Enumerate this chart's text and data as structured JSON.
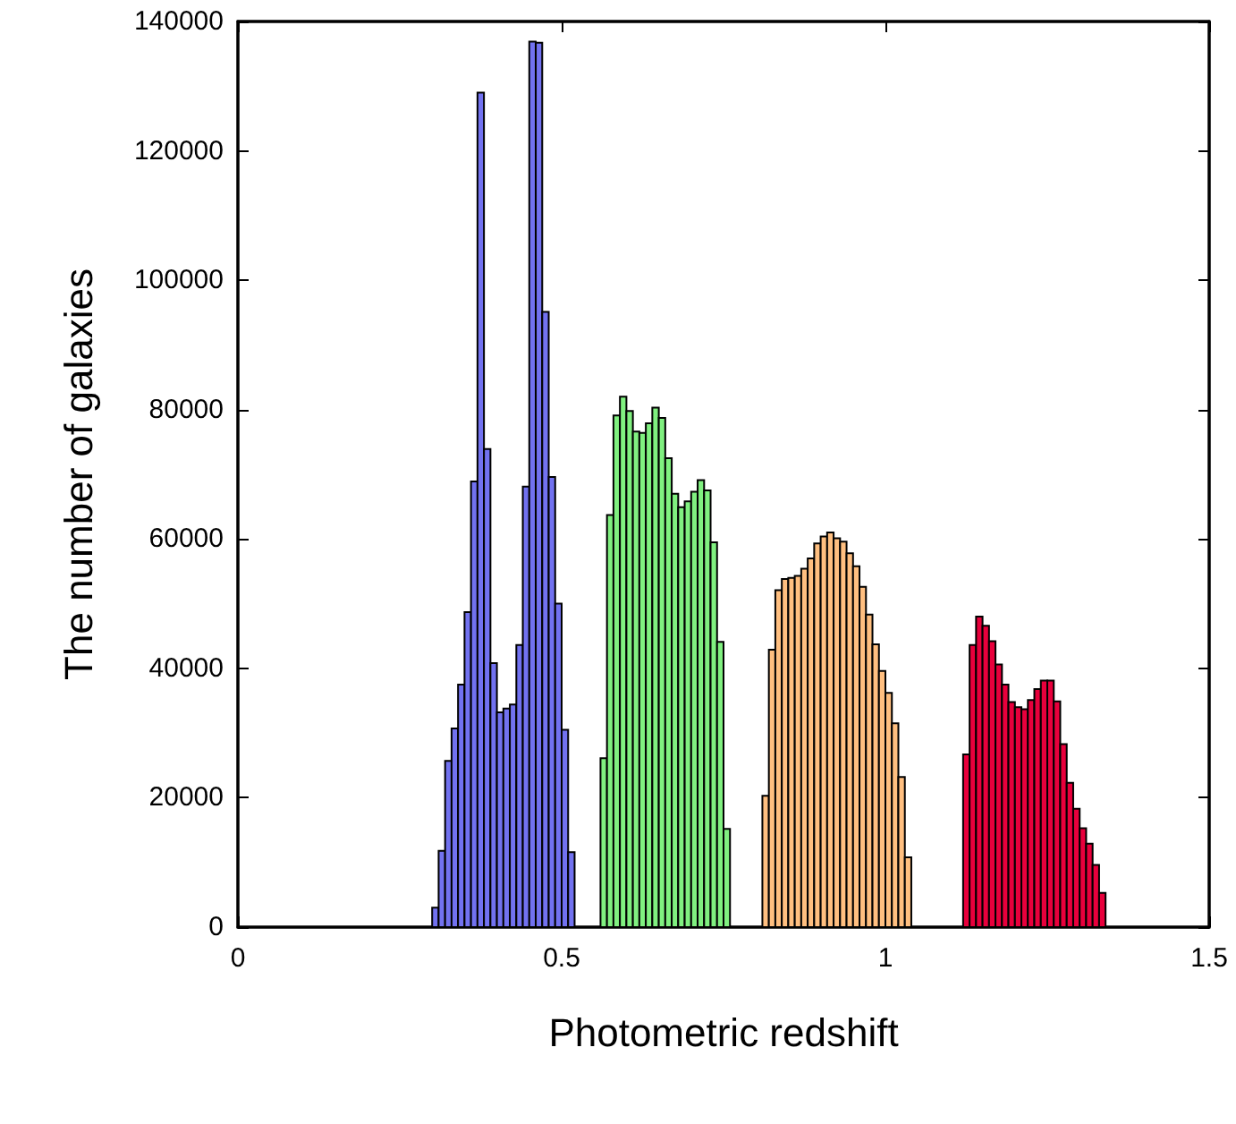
{
  "chart_data": {
    "type": "histogram",
    "xlabel": "Photometric redshift",
    "ylabel": "The number of galaxies",
    "xlim": [
      0,
      1.5
    ],
    "xticks": [
      0,
      0.5,
      1,
      1.5
    ],
    "ylim": [
      0,
      140000
    ],
    "yticks": [
      0,
      20000,
      40000,
      60000,
      80000,
      100000,
      120000,
      140000
    ],
    "bins": [
      0.3,
      0.31,
      0.32,
      0.33,
      0.34,
      0.35,
      0.36,
      0.37,
      0.38,
      0.39,
      0.4,
      0.41,
      0.42,
      0.43,
      0.44,
      0.45,
      0.46,
      0.47,
      0.48,
      0.49,
      0.5,
      0.51,
      0.52,
      0.53,
      0.54,
      0.55,
      0.56,
      0.57,
      0.58,
      0.59,
      0.6,
      0.61,
      0.62,
      0.63,
      0.64,
      0.65,
      0.66,
      0.67,
      0.68,
      0.69,
      0.7,
      0.71,
      0.72,
      0.73,
      0.74,
      0.75,
      0.76,
      0.77,
      0.78,
      0.79,
      0.8,
      0.81,
      0.82,
      0.83,
      0.84,
      0.85,
      0.86,
      0.87,
      0.88,
      0.89,
      0.9,
      0.91,
      0.92,
      0.93,
      0.94,
      0.95,
      0.96,
      0.97,
      0.98,
      0.99,
      1.0,
      1.01,
      1.02,
      1.03,
      1.04,
      1.05,
      1.06,
      1.07,
      1.08,
      1.09,
      1.1,
      1.11,
      1.12,
      1.13,
      1.14,
      1.15,
      1.16,
      1.17,
      1.18,
      1.19,
      1.2,
      1.21,
      1.22,
      1.23,
      1.24,
      1.25,
      1.26,
      1.27,
      1.28,
      1.29,
      1.3,
      1.31,
      1.32,
      1.33,
      1.34
    ],
    "values": [
      3000,
      11800,
      25700,
      30700,
      37500,
      48700,
      68900,
      129000,
      73900,
      40800,
      33200,
      33800,
      34400,
      43600,
      68100,
      136900,
      136700,
      95100,
      69600,
      50000,
      30500,
      11600,
      null,
      null,
      null,
      null,
      26100,
      63700,
      79100,
      82000,
      79800,
      76600,
      76400,
      77900,
      80300,
      78700,
      72500,
      67000,
      64900,
      65800,
      67300,
      69100,
      67500,
      59500,
      44100,
      15200,
      null,
      null,
      null,
      null,
      null,
      20300,
      42900,
      52100,
      53800,
      54000,
      54300,
      55400,
      57000,
      59300,
      60400,
      61000,
      60100,
      59600,
      57800,
      55800,
      52600,
      48300,
      43700,
      39600,
      36200,
      31500,
      23200,
      10800,
      null,
      null,
      null,
      null,
      null,
      null,
      null,
      null,
      26700,
      43600,
      48000,
      46600,
      44200,
      40600,
      37500,
      34800,
      34000,
      33700,
      35100,
      36800,
      38100,
      38100,
      34900,
      28300,
      22300,
      18300,
      15300,
      12900,
      9600,
      5300
    ],
    "colors": [
      "#7272f0",
      "#7272f0",
      "#7272f0",
      "#7272f0",
      "#7272f0",
      "#7272f0",
      "#7272f0",
      "#7272f0",
      "#7272f0",
      "#7272f0",
      "#7272f0",
      "#7272f0",
      "#7272f0",
      "#7272f0",
      "#7272f0",
      "#7272f0",
      "#7272f0",
      "#7272f0",
      "#7272f0",
      "#7272f0",
      "#7272f0",
      "#7272f0",
      null,
      null,
      null,
      null,
      "#80f080",
      "#80f080",
      "#80f080",
      "#80f080",
      "#80f080",
      "#80f080",
      "#80f080",
      "#80f080",
      "#80f080",
      "#80f080",
      "#80f080",
      "#80f080",
      "#80f080",
      "#80f080",
      "#80f080",
      "#80f080",
      "#80f080",
      "#80f080",
      "#80f080",
      "#80f080",
      null,
      null,
      null,
      null,
      null,
      "#ffbf80",
      "#ffbf80",
      "#ffbf80",
      "#ffbf80",
      "#ffbf80",
      "#ffbf80",
      "#ffbf80",
      "#ffbf80",
      "#ffbf80",
      "#ffbf80",
      "#ffbf80",
      "#ffbf80",
      "#ffbf80",
      "#ffbf80",
      "#ffbf80",
      "#ffbf80",
      "#ffbf80",
      "#ffbf80",
      "#ffbf80",
      "#ffbf80",
      "#ffbf80",
      "#ffbf80",
      "#ffbf80",
      null,
      null,
      null,
      null,
      null,
      null,
      null,
      null,
      "#e8003c",
      "#e8003c",
      "#e8003c",
      "#e8003c",
      "#e8003c",
      "#e8003c",
      "#e8003c",
      "#e8003c",
      "#e8003c",
      "#e8003c",
      "#e8003c",
      "#e8003c",
      "#e8003c",
      "#e8003c",
      "#e8003c",
      "#e8003c",
      "#e8003c",
      "#e8003c",
      "#e8003c",
      "#e8003c",
      "#e8003c",
      "#e8003c"
    ]
  }
}
